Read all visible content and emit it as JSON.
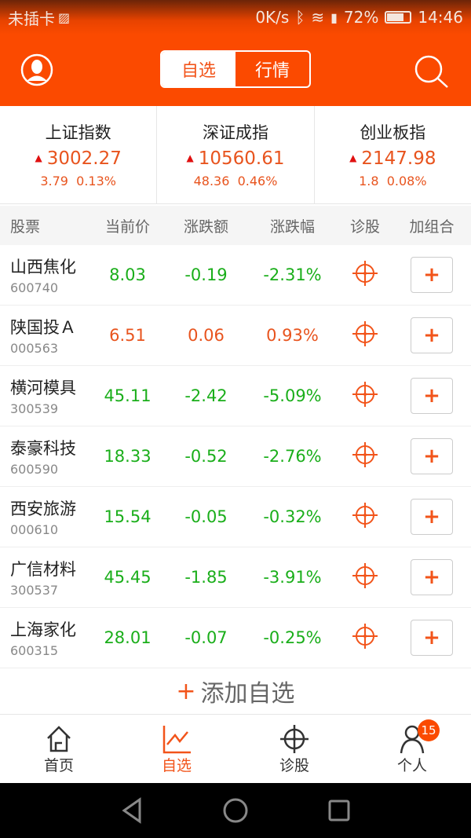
{
  "status_bar": {
    "carrier": "未插卡",
    "speed": "0K/s",
    "battery": "72%",
    "battery_level": 0.72,
    "time": "14:46"
  },
  "header": {
    "tabs": [
      {
        "label": "自选",
        "active": true
      },
      {
        "label": "行情",
        "active": false
      }
    ]
  },
  "indices": [
    {
      "name": "上证指数",
      "value": "3002.27",
      "change": "3.79",
      "pct": "0.13%"
    },
    {
      "name": "深证成指",
      "value": "10560.61",
      "change": "48.36",
      "pct": "0.46%"
    },
    {
      "name": "创业板指",
      "value": "2147.98",
      "change": "1.8",
      "pct": "0.08%"
    }
  ],
  "table": {
    "headers": [
      "股票",
      "当前价",
      "涨跌额",
      "涨跌幅",
      "诊股",
      "加组合"
    ],
    "rows": [
      {
        "name": "山西焦化",
        "code": "600740",
        "price": "8.03",
        "change": "-0.19",
        "pct": "-2.31%",
        "dir": "down"
      },
      {
        "name": "陕国投Ａ",
        "code": "000563",
        "price": "6.51",
        "change": "0.06",
        "pct": "0.93%",
        "dir": "up"
      },
      {
        "name": "横河模具",
        "code": "300539",
        "price": "45.11",
        "change": "-2.42",
        "pct": "-5.09%",
        "dir": "down"
      },
      {
        "name": "泰豪科技",
        "code": "600590",
        "price": "18.33",
        "change": "-0.52",
        "pct": "-2.76%",
        "dir": "down"
      },
      {
        "name": "西安旅游",
        "code": "000610",
        "price": "15.54",
        "change": "-0.05",
        "pct": "-0.32%",
        "dir": "down"
      },
      {
        "name": "广信材料",
        "code": "300537",
        "price": "45.45",
        "change": "-1.85",
        "pct": "-3.91%",
        "dir": "down"
      },
      {
        "name": "上海家化",
        "code": "600315",
        "price": "28.01",
        "change": "-0.07",
        "pct": "-0.25%",
        "dir": "down"
      }
    ],
    "add_label": "+"
  },
  "add_watchlist": {
    "plus": "+",
    "label": "添加自选"
  },
  "bottom_nav": [
    {
      "label": "首页",
      "icon": "home-icon"
    },
    {
      "label": "自选",
      "icon": "chart-icon",
      "active": true
    },
    {
      "label": "诊股",
      "icon": "crosshair-icon"
    },
    {
      "label": "个人",
      "icon": "person-icon",
      "badge": "15"
    }
  ],
  "colors": {
    "brand": "#fb4a00",
    "up": "#e8541e",
    "down": "#1aae1a"
  }
}
